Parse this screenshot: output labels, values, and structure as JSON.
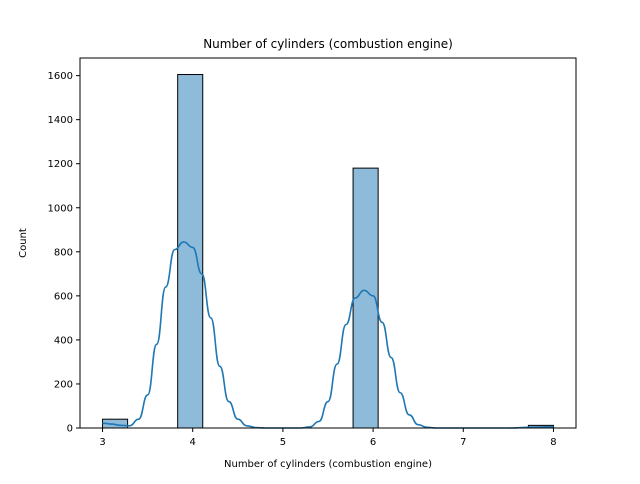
{
  "chart_data": {
    "type": "bar",
    "title": "Number of cylinders (combustion engine)",
    "xlabel": "Number of cylinders (combustion engine)",
    "ylabel": "Count",
    "xlim": [
      2.75,
      8.25
    ],
    "ylim": [
      0,
      1680
    ],
    "x_ticks": [
      3,
      4,
      5,
      6,
      7,
      8
    ],
    "y_ticks": [
      0,
      200,
      400,
      600,
      800,
      1000,
      1200,
      1400,
      1600
    ],
    "grid": false,
    "legend": "none",
    "histogram": {
      "bin_start": 3,
      "bin_width": 0.278,
      "bins": [
        {
          "x_start": 3.0,
          "count": 40
        },
        {
          "x_start": 3.833,
          "count": 1605
        },
        {
          "x_start": 5.778,
          "count": 1180
        },
        {
          "x_start": 7.722,
          "count": 12
        }
      ]
    },
    "kde": {
      "x": [
        3.0,
        3.1,
        3.2,
        3.3,
        3.4,
        3.5,
        3.6,
        3.7,
        3.8,
        3.9,
        4.0,
        4.1,
        4.2,
        4.3,
        4.4,
        4.5,
        4.6,
        4.7,
        4.8,
        4.9,
        5.0,
        5.1,
        5.2,
        5.3,
        5.4,
        5.5,
        5.6,
        5.7,
        5.8,
        5.9,
        6.0,
        6.1,
        6.2,
        6.3,
        6.4,
        6.5,
        6.6,
        6.7,
        6.8,
        6.9,
        7.0,
        7.5,
        7.8,
        8.0
      ],
      "y": [
        22,
        18,
        12,
        10,
        40,
        150,
        380,
        640,
        810,
        845,
        820,
        700,
        500,
        280,
        120,
        40,
        10,
        2,
        0,
        0,
        0,
        0,
        0,
        5,
        30,
        120,
        290,
        470,
        590,
        625,
        600,
        480,
        320,
        160,
        60,
        15,
        3,
        0,
        0,
        0,
        0,
        0,
        4,
        6
      ]
    },
    "colors": {
      "bar_fill": "#8fbbda",
      "bar_edge": "#000000",
      "kde_line": "#1f77b4"
    }
  }
}
